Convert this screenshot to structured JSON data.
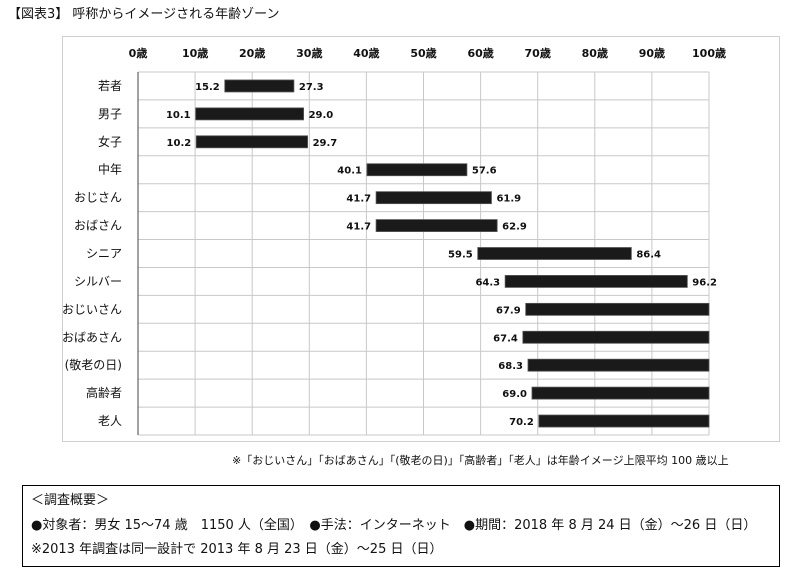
{
  "title": "【図表3】 呼称からイメージされる年齢ゾーン",
  "footnote": "※「おじいさん」「おばあさん」「(敬老の日)」「高齢者」「老人」は年齢イメージ上限平均 100 歳以上",
  "survey": {
    "heading": "＜調査概要＞",
    "line1": "●対象者：男女 15～74 歳　1150 人（全国）　●手法：インターネット　●期間：2018 年 8 月 24 日（金）～26 日（日）",
    "line2": "※2013 年調査は同一設計で 2013 年 8 月 23 日（金）～25 日（日）"
  },
  "colors": {
    "bar": "#1a1a1a",
    "grid": "#c8c8c8"
  },
  "chart_data": {
    "type": "bar",
    "orientation": "horizontal-range",
    "xlim": [
      0,
      100
    ],
    "ticks": [
      "0歳",
      "10歳",
      "20歳",
      "30歳",
      "40歳",
      "50歳",
      "60歳",
      "70歳",
      "80歳",
      "90歳",
      "100歳"
    ],
    "tick_values": [
      0,
      10,
      20,
      30,
      40,
      50,
      60,
      70,
      80,
      90,
      100
    ],
    "grid": true,
    "categories": [
      "若者",
      "男子",
      "女子",
      "中年",
      "おじさん",
      "おばさん",
      "シニア",
      "シルバー",
      "おじいさん",
      "おばあさん",
      "(敬老の日)",
      "高齢者",
      "老人"
    ],
    "starts": [
      15.2,
      10.1,
      10.2,
      40.1,
      41.7,
      41.7,
      59.5,
      64.3,
      67.9,
      67.4,
      68.3,
      69.0,
      70.2
    ],
    "ends": [
      27.3,
      29.0,
      29.7,
      57.6,
      61.9,
      62.9,
      86.4,
      96.2,
      100,
      100,
      100,
      100,
      100
    ],
    "start_labels": [
      "15.2",
      "10.1",
      "10.2",
      "40.1",
      "41.7",
      "41.7",
      "59.5",
      "64.3",
      "67.9",
      "67.4",
      "68.3",
      "69.0",
      "70.2"
    ],
    "end_labels": [
      "27.3",
      "29.0",
      "29.7",
      "57.6",
      "61.9",
      "62.9",
      "86.4",
      "96.2",
      "",
      "",
      "",
      "",
      ""
    ]
  }
}
